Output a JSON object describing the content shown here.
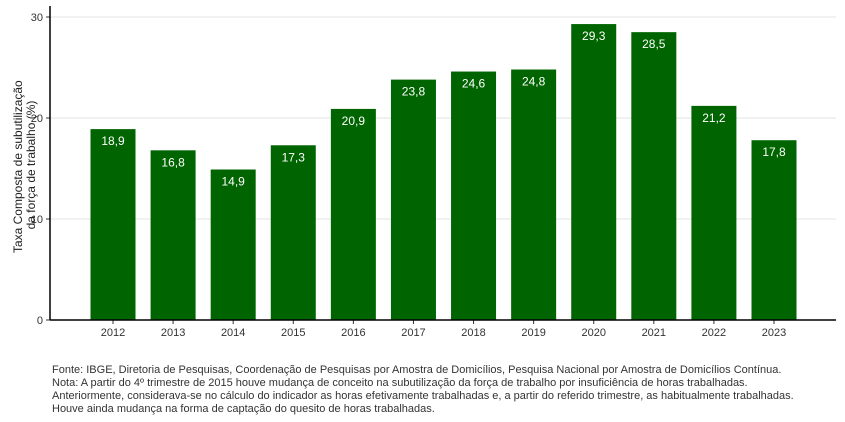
{
  "chart_data": {
    "type": "bar",
    "title": "",
    "xlabel": "",
    "ylabel_lines": [
      "Taxa Composta de subutilização",
      "da força de trabalho (%)"
    ],
    "categories": [
      "2012",
      "2013",
      "2014",
      "2015",
      "2016",
      "2017",
      "2018",
      "2019",
      "2020",
      "2021",
      "2022",
      "2023"
    ],
    "values": [
      18.9,
      16.8,
      14.9,
      17.3,
      20.9,
      23.8,
      24.6,
      24.8,
      29.3,
      28.5,
      21.2,
      17.8
    ],
    "value_labels": [
      "18,9",
      "16,8",
      "14,9",
      "17,3",
      "20,9",
      "23,8",
      "24,6",
      "24,8",
      "29,3",
      "28,5",
      "21,2",
      "17,8"
    ],
    "ylim": [
      0,
      30
    ],
    "yticks": [
      0,
      10,
      20,
      30
    ],
    "grid": "horizontal",
    "legend": "none",
    "bar_color": "#006400"
  },
  "footnotes": [
    "Fonte: IBGE, Diretoria de Pesquisas, Coordenação de Pesquisas por Amostra de Domicílios, Pesquisa Nacional por Amostra de Domicílios Contínua.",
    "Nota: A partir do 4º trimestre de 2015 houve mudança de conceito na subutilização da força de trabalho por insuficiência de horas trabalhadas.",
    "Anteriormente, considerava-se no cálculo do indicador as horas efetivamente trabalhadas e, a partir do referido trimestre, as habitualmente trabalhadas.",
    "Houve ainda mudança na forma de captação do quesito de horas trabalhadas."
  ]
}
